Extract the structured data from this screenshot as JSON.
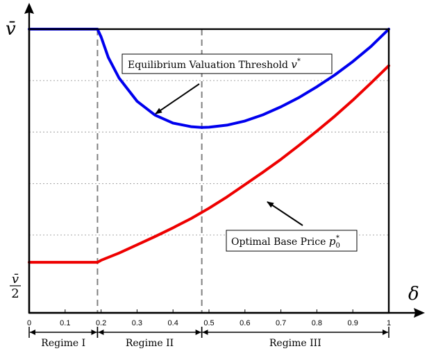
{
  "chart_data": {
    "type": "line",
    "x_symbol": "δ",
    "y_top_label": "v̄",
    "y_bottom_label_num": "v̄",
    "y_bottom_label_den": "2",
    "xlim": [
      0,
      1
    ],
    "ylim_fraction_of_vbar": [
      0.5,
      1.0
    ],
    "grid": true,
    "x_ticks": [
      "0",
      "0.1",
      "0.2",
      "0.3",
      "0.4",
      "0.5",
      "0.6",
      "0.7",
      "0.8",
      "0.9",
      "1"
    ],
    "y_grid_values": [
      0.6,
      0.7,
      0.8,
      0.9
    ],
    "series": [
      {
        "name": "Equilibrium Valuation Threshold v*",
        "color": "#0000ee",
        "x": [
          0,
          0.19,
          0.2,
          0.22,
          0.25,
          0.3,
          0.35,
          0.4,
          0.45,
          0.48,
          0.5,
          0.55,
          0.6,
          0.65,
          0.7,
          0.75,
          0.8,
          0.85,
          0.9,
          0.95,
          1.0
        ],
        "y": [
          1.0,
          1.0,
          0.985,
          0.945,
          0.905,
          0.86,
          0.833,
          0.8175,
          0.8105,
          0.809,
          0.8095,
          0.8135,
          0.8215,
          0.8335,
          0.849,
          0.867,
          0.888,
          0.911,
          0.937,
          0.966,
          1.0
        ]
      },
      {
        "name": "Optimal Base Price p0*",
        "color": "#ee0000",
        "x": [
          0,
          0.19,
          0.2,
          0.25,
          0.3,
          0.35,
          0.4,
          0.45,
          0.5,
          0.55,
          0.6,
          0.65,
          0.7,
          0.75,
          0.8,
          0.85,
          0.9,
          0.95,
          1.0
        ],
        "y": [
          0.547,
          0.547,
          0.551,
          0.565,
          0.581,
          0.597,
          0.614,
          0.632,
          0.652,
          0.674,
          0.698,
          0.722,
          0.747,
          0.774,
          0.802,
          0.831,
          0.862,
          0.895,
          0.929
        ]
      }
    ],
    "vertical_lines_x": [
      0.19,
      0.48
    ],
    "regimes": [
      {
        "label": "Regime I",
        "x_start": 0,
        "x_end": 0.19
      },
      {
        "label": "Regime II",
        "x_start": 0.19,
        "x_end": 0.48
      },
      {
        "label": "Regime III",
        "x_start": 0.48,
        "x_end": 1.0
      }
    ],
    "annotations": [
      {
        "text": "Equilibrium Valuation Threshold ",
        "math": "v",
        "sup": "*",
        "arrow_to_series": 0,
        "arrow_x": 0.35
      },
      {
        "text": "Optimal Base Price ",
        "math": "p",
        "sub": "0",
        "sup": "*",
        "arrow_to_series": 1,
        "arrow_x": 0.66
      }
    ]
  }
}
